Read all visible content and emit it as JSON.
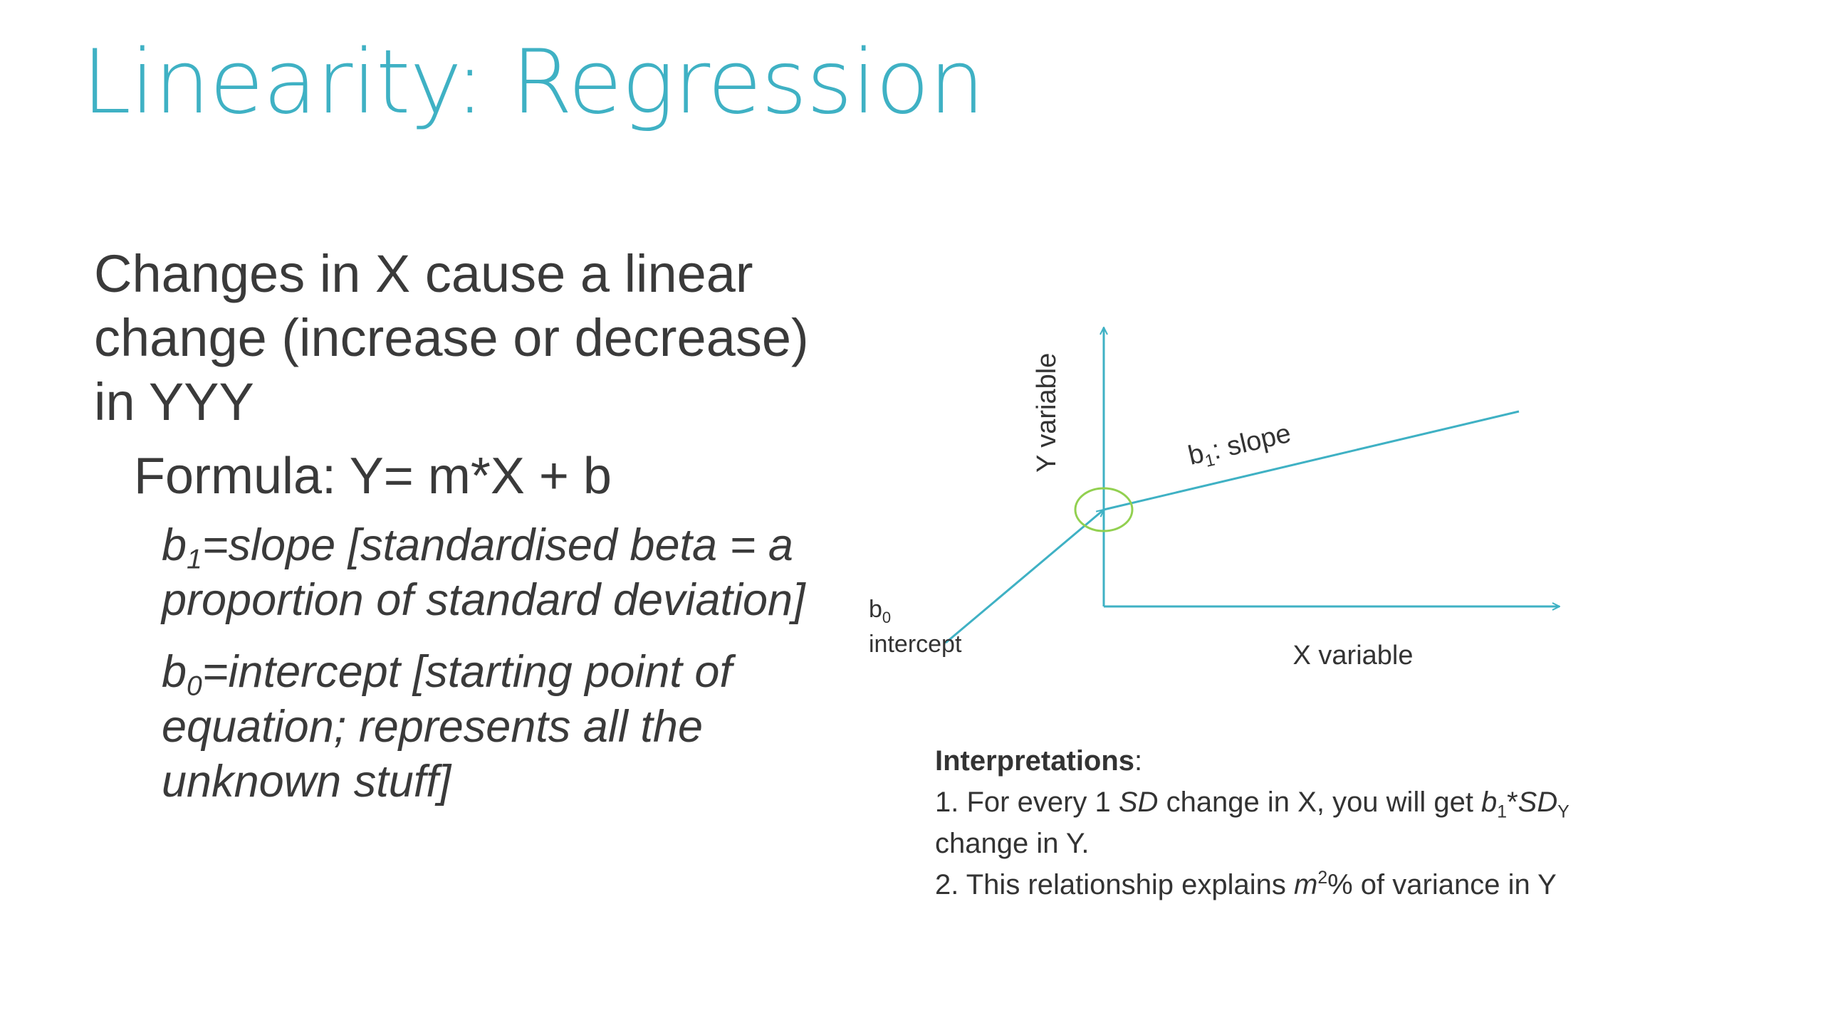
{
  "slide": {
    "title": "Linearity: Regression"
  },
  "bullets": {
    "main": "Changes in X cause a linear change (increase or decrease) in YYY",
    "formula": "Formula: Y= m*X + b",
    "slope": {
      "prefix": "b",
      "sub": "1",
      "text": "=slope [standardised beta = a proportion of standard deviation]"
    },
    "intercept": {
      "prefix": "b",
      "sub": "0",
      "text": "=intercept [starting point of equation; represents all the unknown stuff]"
    }
  },
  "diagram": {
    "y_axis_label": "Y variable",
    "x_axis_label": "X variable",
    "slope_label": {
      "prefix": "b",
      "sub": "1",
      "text": ": slope"
    },
    "intercept_label": {
      "prefix": "b",
      "sub": "0",
      "text": "intercept"
    },
    "line_color": "#3fb1c4",
    "highlight_color": "#92d050"
  },
  "interpretations": {
    "heading": "Interpretations",
    "heading_suffix": ":",
    "item1": {
      "part1": "1. For every 1 ",
      "sd": "SD",
      "part2": " change in X, you will get ",
      "b": "b",
      "b_sub": "1",
      "star": "*",
      "sd2": "SD",
      "sd2_sub": "Y",
      "part3": "change in Y."
    },
    "item2": {
      "part1": "2. This relationship explains ",
      "m": "m",
      "m_sup": "2",
      "part2": "% of variance in Y"
    }
  }
}
